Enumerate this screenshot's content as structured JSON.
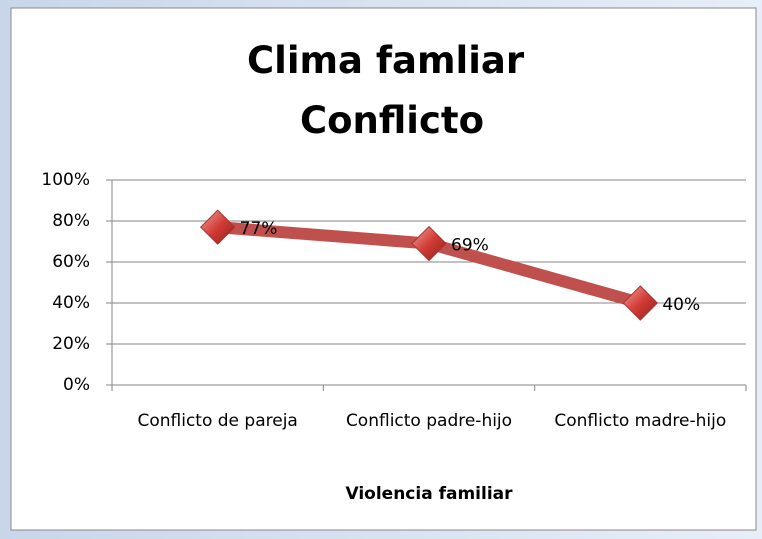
{
  "chart_data": {
    "type": "line",
    "title": "Clima famliar Conflicto",
    "x_label": "Violencia familiar",
    "categories": [
      "Conflicto de pareja",
      "Conflicto padre-hijo",
      "Conflicto madre-hijo"
    ],
    "series": [
      {
        "name": "Conflicto",
        "color": "#c0504d",
        "values": [
          77,
          69,
          40
        ],
        "value_labels": [
          "77%",
          "69%",
          "40%"
        ]
      }
    ],
    "ylim": [
      0,
      100
    ],
    "yticks": [
      {
        "value": 0,
        "label": "0%"
      },
      {
        "value": 20,
        "label": "20%"
      },
      {
        "value": 40,
        "label": "40%"
      },
      {
        "value": 60,
        "label": "60%"
      },
      {
        "value": 80,
        "label": "80%"
      },
      {
        "value": 100,
        "label": "100%"
      }
    ],
    "grid": true
  }
}
